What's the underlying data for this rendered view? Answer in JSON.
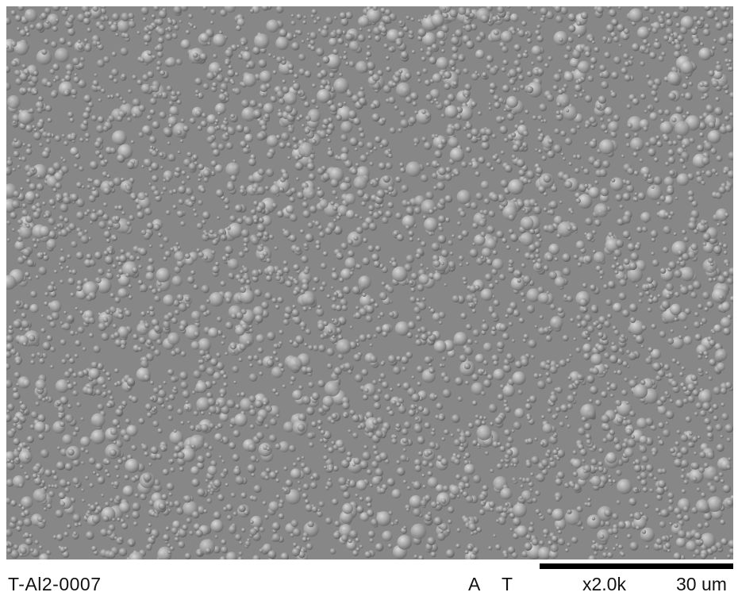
{
  "image": {
    "kind": "sem-micrograph",
    "texture": "granular-nodular-surface",
    "base_color": "#8a8a8a",
    "highlight_color": "#c4c4c4",
    "shadow_color": "#4e4e4e"
  },
  "info_bar": {
    "sample_id": "T-Al2-0007",
    "mode_a": "A",
    "mode_t": "T",
    "magnification": "x2.0k",
    "scale_label": "30 um"
  }
}
